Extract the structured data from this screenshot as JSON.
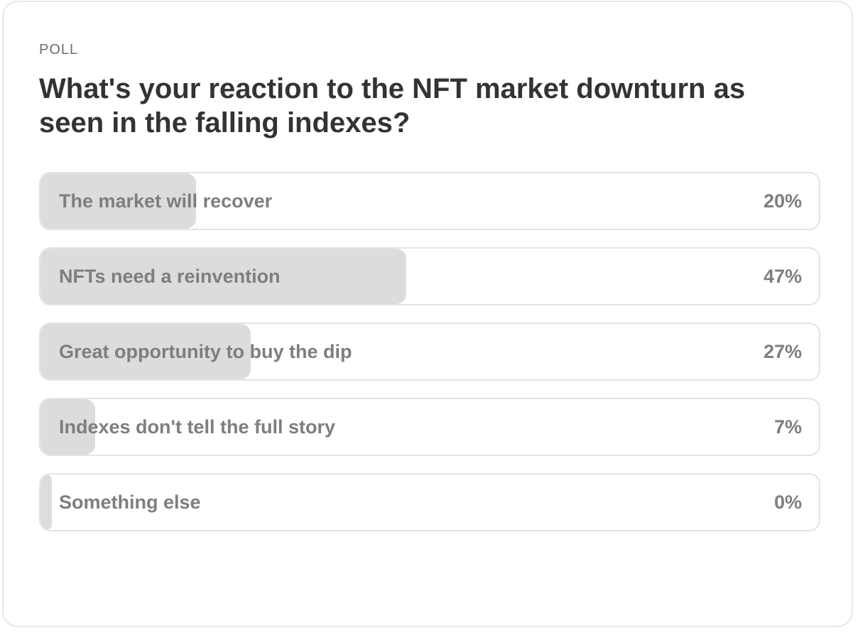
{
  "poll": {
    "kicker": "POLL",
    "question": "What's your reaction to the NFT market downturn as seen in the falling indexes?",
    "fill_color": "#dcdcdc",
    "options": [
      {
        "label": "The market will recover",
        "percent_text": "20%",
        "percent": 20
      },
      {
        "label": "NFTs need a reinvention",
        "percent_text": "47%",
        "percent": 47
      },
      {
        "label": "Great opportunity to buy the dip",
        "percent_text": "27%",
        "percent": 27
      },
      {
        "label": "Indexes don't tell the full story",
        "percent_text": "7%",
        "percent": 7
      },
      {
        "label": "Something else",
        "percent_text": "0%",
        "percent": 0
      }
    ]
  }
}
